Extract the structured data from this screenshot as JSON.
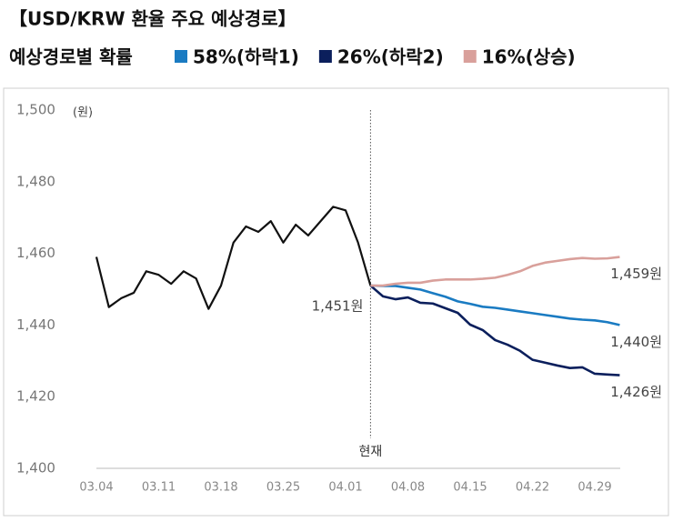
{
  "chart_data": {
    "type": "line",
    "title": "【USD/KRW 환율 주요 예상경로】",
    "subtitle": "예상경로별 확률",
    "y_unit": "(원)",
    "annotation": "현재",
    "categories": [
      "03.04",
      null,
      null,
      null,
      null,
      "03.11",
      null,
      null,
      null,
      null,
      "03.18",
      null,
      null,
      null,
      null,
      "03.25",
      null,
      null,
      null,
      null,
      "04.01",
      null,
      null,
      null,
      null,
      "04.08",
      null,
      null,
      null,
      null,
      "04.15",
      null,
      null,
      null,
      null,
      "04.22",
      null,
      null,
      null,
      null,
      "04.29",
      null,
      null
    ],
    "series": [
      {
        "color": "#111111",
        "values": [
          1459,
          1445,
          1447.5,
          1449,
          1455,
          1454,
          1451.5,
          1455,
          1453,
          1444.5,
          1451,
          1463,
          1467.5,
          1466,
          1469,
          1463,
          1468,
          1465,
          1469,
          1473,
          1472,
          1463,
          1451,
          null,
          null,
          null,
          null,
          null,
          null,
          null,
          null,
          null,
          null,
          null,
          null,
          null,
          null,
          null,
          null,
          null,
          null,
          null,
          null
        ],
        "value_labels": [
          null,
          null,
          null,
          null,
          null,
          null,
          null,
          null,
          null,
          null,
          null,
          null,
          null,
          null,
          null,
          null,
          null,
          null,
          null,
          null,
          null,
          null,
          "1,451원",
          null,
          null,
          null,
          null,
          null,
          null,
          null,
          null,
          null,
          null,
          null,
          null,
          null,
          null,
          null,
          null,
          null,
          null,
          null,
          null
        ]
      },
      {
        "name": "58%(하락1)",
        "color": "#1a7bc2",
        "values": [
          null,
          null,
          null,
          null,
          null,
          null,
          null,
          null,
          null,
          null,
          null,
          null,
          null,
          null,
          null,
          null,
          null,
          null,
          null,
          null,
          null,
          null,
          1451,
          1450.9,
          1450.9,
          1450.4,
          1449.9,
          1448.9,
          1447.9,
          1446.6,
          1445.9,
          1445.1,
          1444.8,
          1444.3,
          1443.8,
          1443.3,
          1442.8,
          1442.3,
          1441.8,
          1441.5,
          1441.3,
          1440.8,
          1440
        ],
        "value_labels": [
          null,
          null,
          null,
          null,
          null,
          null,
          null,
          null,
          null,
          null,
          null,
          null,
          null,
          null,
          null,
          null,
          null,
          null,
          null,
          null,
          null,
          null,
          null,
          null,
          null,
          null,
          null,
          null,
          null,
          null,
          null,
          null,
          null,
          null,
          null,
          null,
          null,
          null,
          null,
          null,
          null,
          null,
          "1,440원"
        ]
      },
      {
        "name": "26%(하락2)",
        "color": "#0b1f5c",
        "values": [
          null,
          null,
          null,
          null,
          null,
          null,
          null,
          null,
          null,
          null,
          null,
          null,
          null,
          null,
          null,
          null,
          null,
          null,
          null,
          null,
          null,
          null,
          1451,
          1448,
          1447.2,
          1447.7,
          1446.2,
          1446,
          1444.7,
          1443.4,
          1440.1,
          1438.6,
          1435.8,
          1434.5,
          1432.8,
          1430.3,
          1429.5,
          1428.7,
          1428,
          1428.2,
          1426.4,
          1426.2,
          1426
        ],
        "value_labels": [
          null,
          null,
          null,
          null,
          null,
          null,
          null,
          null,
          null,
          null,
          null,
          null,
          null,
          null,
          null,
          null,
          null,
          null,
          null,
          null,
          null,
          null,
          null,
          null,
          null,
          null,
          null,
          null,
          null,
          null,
          null,
          null,
          null,
          null,
          null,
          null,
          null,
          null,
          null,
          null,
          null,
          null,
          "1,426원"
        ]
      },
      {
        "name": "16%(상승)",
        "color": "#d9a09b",
        "values": [
          null,
          null,
          null,
          null,
          null,
          null,
          null,
          null,
          null,
          null,
          null,
          null,
          null,
          null,
          null,
          null,
          null,
          null,
          null,
          null,
          null,
          null,
          1451,
          1451,
          1451.5,
          1451.8,
          1451.8,
          1452.4,
          1452.7,
          1452.7,
          1452.7,
          1452.9,
          1453.2,
          1454,
          1455,
          1456.5,
          1457.4,
          1457.9,
          1458.4,
          1458.7,
          1458.5,
          1458.6,
          1459
        ],
        "value_labels": [
          null,
          null,
          null,
          null,
          null,
          null,
          null,
          null,
          null,
          null,
          null,
          null,
          null,
          null,
          null,
          null,
          null,
          null,
          null,
          null,
          null,
          null,
          null,
          null,
          null,
          null,
          null,
          null,
          null,
          null,
          null,
          null,
          null,
          null,
          null,
          null,
          null,
          null,
          null,
          null,
          null,
          null,
          "1,459원"
        ]
      }
    ],
    "ylim": [
      1400,
      1500
    ],
    "yticks": [
      {
        "value": 1400,
        "label": "1,400"
      },
      {
        "value": 1420,
        "label": "1,420"
      },
      {
        "value": 1440,
        "label": "1,440"
      },
      {
        "value": 1460,
        "label": "1,460"
      },
      {
        "value": 1480,
        "label": "1,480"
      },
      {
        "value": 1500,
        "label": "1,500"
      }
    ],
    "grid": false
  }
}
